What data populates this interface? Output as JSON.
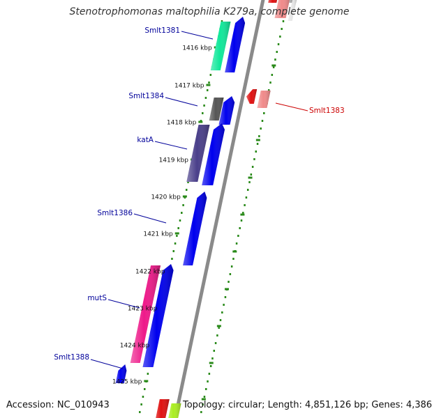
{
  "title": "Stenotrophomonas maltophilia K279a, complete genome",
  "footer": {
    "accession": "Accession: NC_010943",
    "topology": "Topology: circular; Length: 4,851,126 bp; Genes: 4,386"
  },
  "colors": {
    "backbone": "#8a8a8a",
    "tick": "#2a8a1a",
    "forward_cds": "#0000ee",
    "forward_label": "#00009a",
    "reverse_label": "#cc0000",
    "smlt1381": "#10e89a",
    "smlt1384": "#555555",
    "katA": "#4a3f8a",
    "mutS": "#ee1a8a",
    "reverse_cds": "#e01010",
    "reverse_cds_light": "#f08a8a",
    "neighbor_yellow": "#aaee22"
  },
  "scale": {
    "unit": "kbp",
    "ticks": [
      {
        "pos": 1416,
        "label": "1416 kbp"
      },
      {
        "pos": 1417,
        "label": "1417 kbp"
      },
      {
        "pos": 1418,
        "label": "1418 kbp"
      },
      {
        "pos": 1419,
        "label": "1419 kbp"
      },
      {
        "pos": 1420,
        "label": "1420 kbp"
      },
      {
        "pos": 1421,
        "label": "1421 kbp"
      },
      {
        "pos": 1422,
        "label": "1422 kbp"
      },
      {
        "pos": 1423,
        "label": "1423 kbp"
      },
      {
        "pos": 1424,
        "label": "1424 kbp"
      },
      {
        "pos": 1425,
        "label": "1425 kbp"
      }
    ]
  },
  "genes": [
    {
      "label": "Smlt1381",
      "strand": "forward",
      "color_key": "smlt1381"
    },
    {
      "label": "Smlt1383",
      "strand": "reverse",
      "color_key": "reverse_cds_light"
    },
    {
      "label": "Smlt1384",
      "strand": "forward",
      "color_key": "smlt1384"
    },
    {
      "label": "katA",
      "strand": "forward",
      "color_key": "katA"
    },
    {
      "label": "Smlt1386",
      "strand": "forward",
      "color_key": "forward_cds"
    },
    {
      "label": "mutS",
      "strand": "forward",
      "color_key": "mutS"
    },
    {
      "label": "Smlt1388",
      "strand": "forward",
      "color_key": "forward_cds"
    }
  ]
}
